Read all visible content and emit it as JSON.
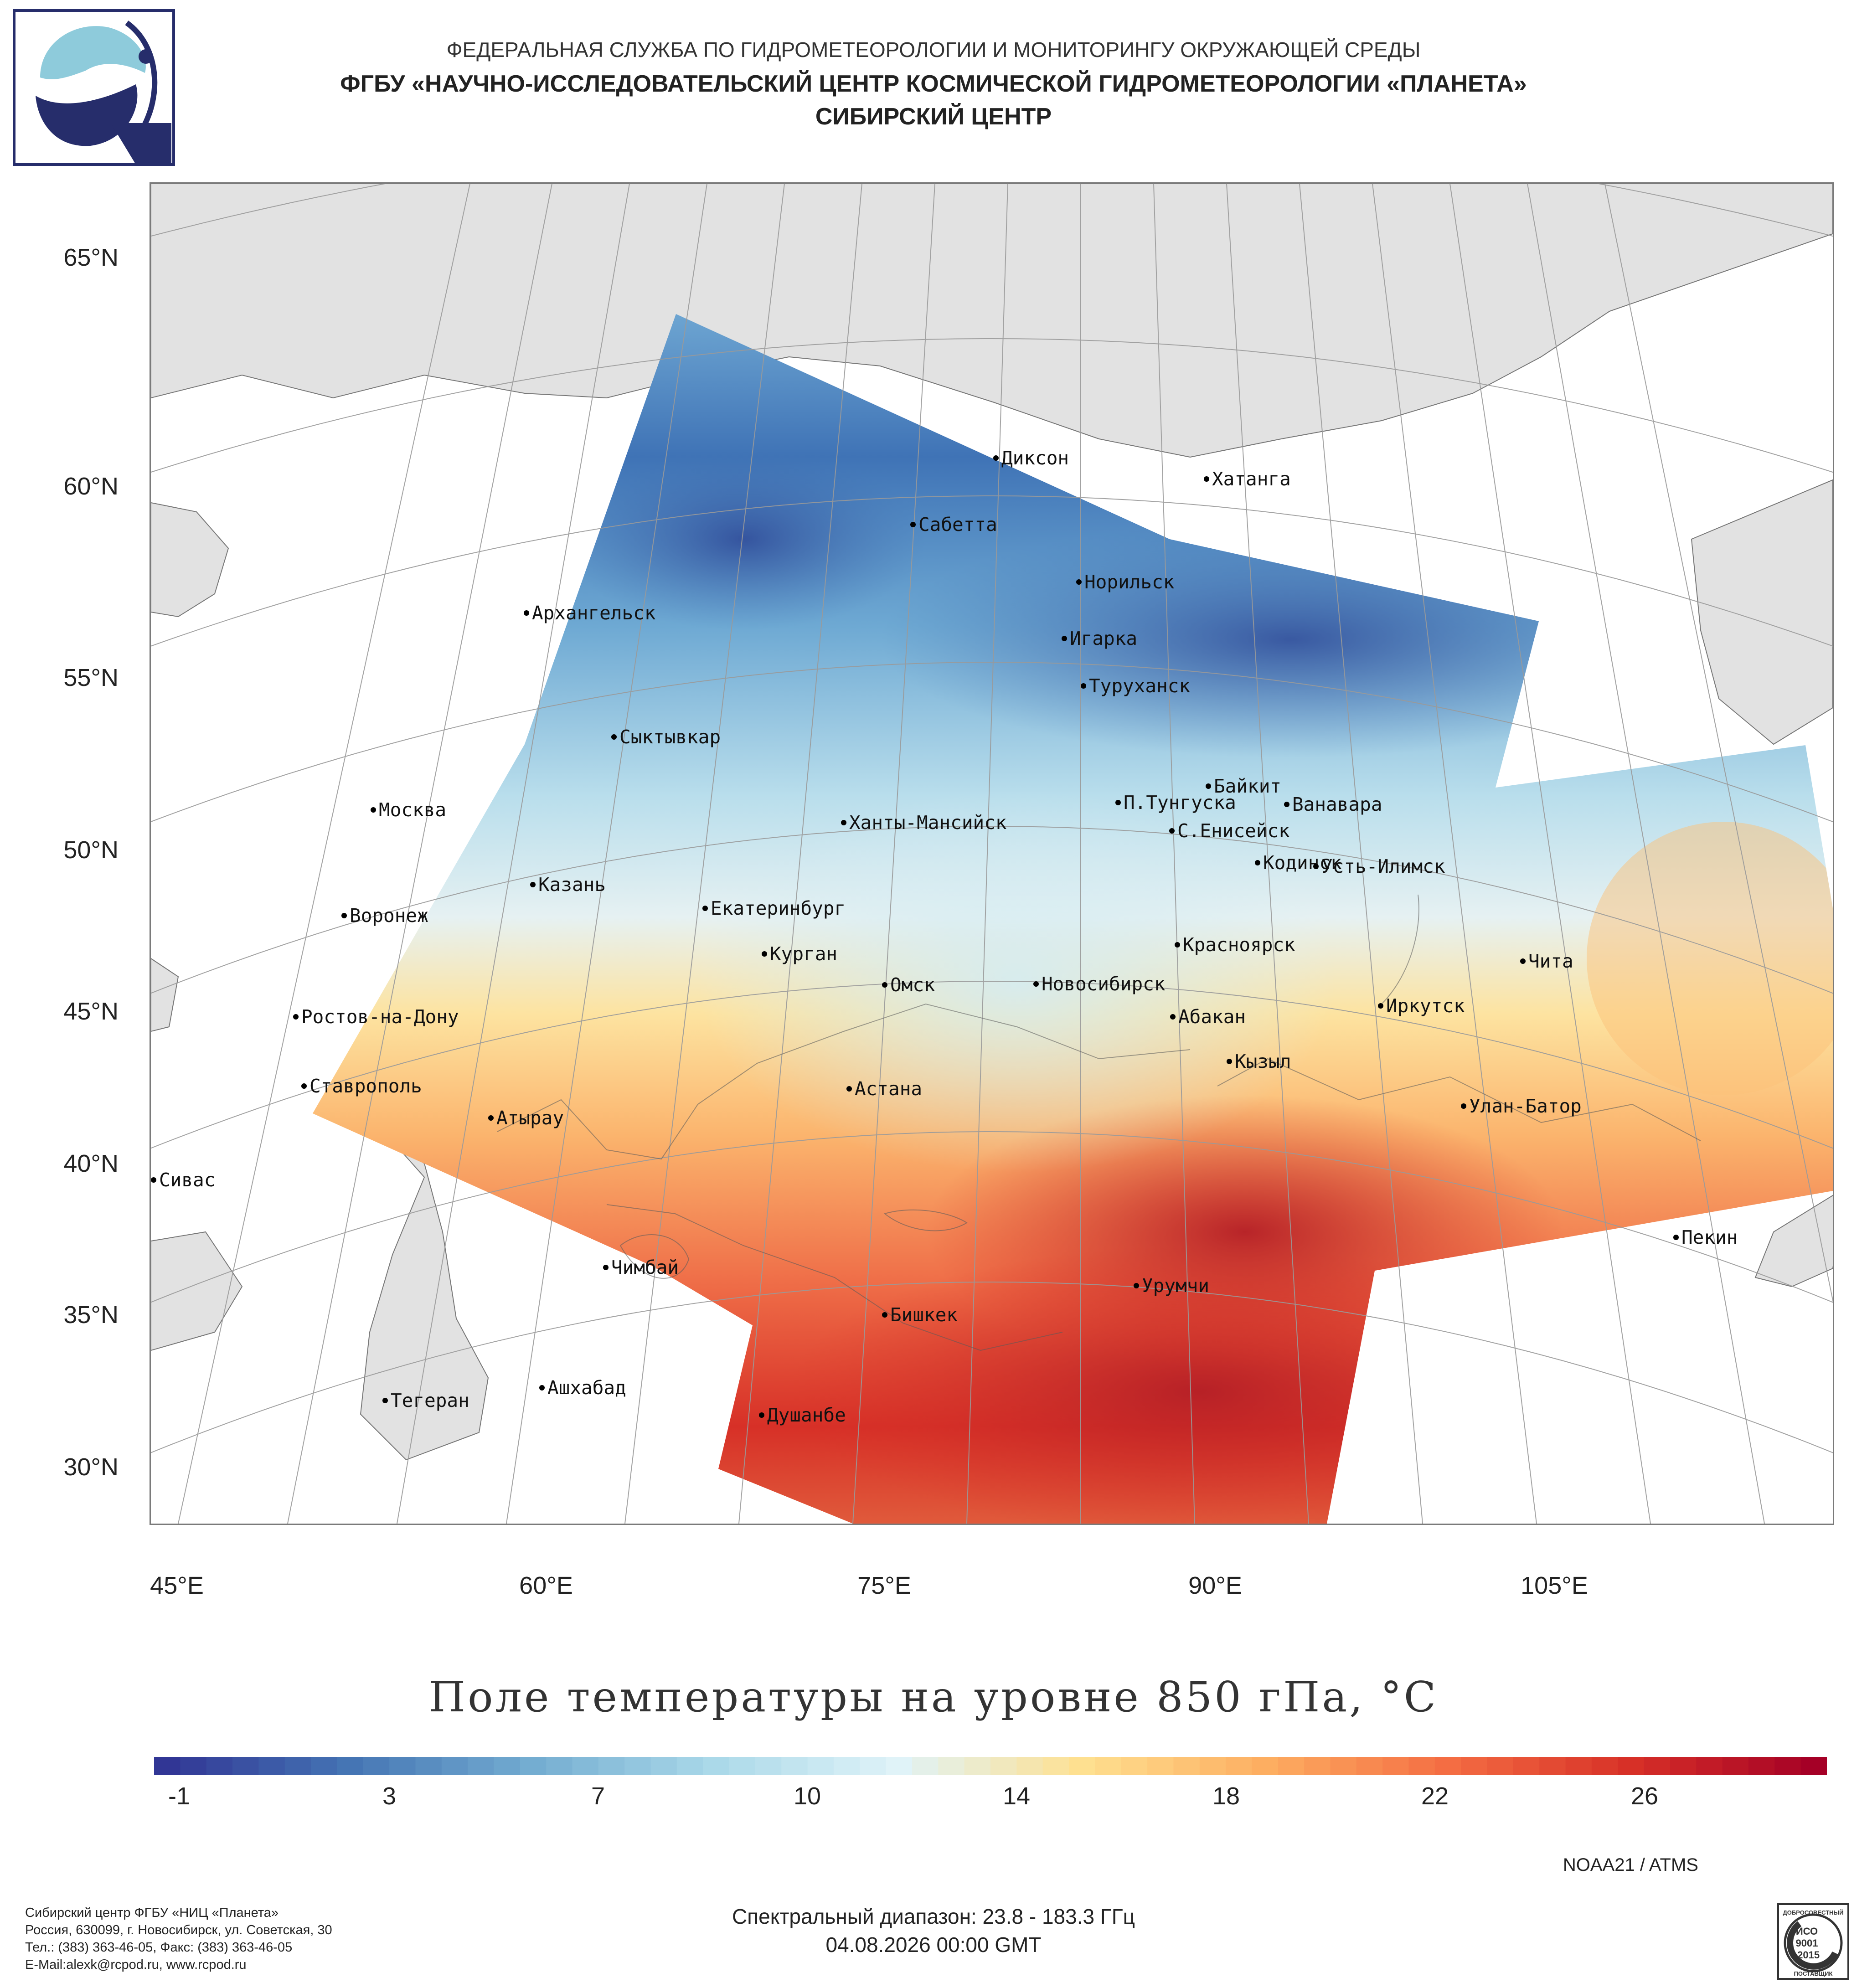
{
  "header": {
    "line1": "ФЕДЕРАЛЬНАЯ СЛУЖБА ПО ГИДРОМЕТЕОРОЛОГИИ И МОНИТОРИНГУ ОКРУЖАЮЩЕЙ СРЕДЫ",
    "line2": "ФГБУ «НАУЧНО-ИССЛЕДОВАТЕЛЬСКИЙ ЦЕНТР КОСМИЧЕСКОЙ ГИДРОМЕТЕОРОЛОГИИ «ПЛАНЕТА»",
    "line3": "СИБИРСКИЙ ЦЕНТР"
  },
  "logo": {
    "icon": "planeta-logo-icon",
    "colors": {
      "dark": "#262d6b",
      "light": "#8ecbdb"
    }
  },
  "map": {
    "lat_labels": [
      "65°N",
      "60°N",
      "55°N",
      "50°N",
      "45°N",
      "40°N",
      "35°N",
      "30°N"
    ],
    "lon_labels": [
      "45°E",
      "60°E",
      "75°E",
      "90°E",
      "105°E"
    ],
    "land_color": "#e2e2e2",
    "cities": [
      "Диксон",
      "Хатанга",
      "Сабетта",
      "Норильск",
      "Архангельск",
      "Игарка",
      "Туруханск",
      "Сыктывкар",
      "Байкит",
      "Москва",
      "П.Тунгуска",
      "Ванавара",
      "Ханты-Мансийск",
      "С.Енисейск",
      "Кодинск",
      "Усть-Илимск",
      "Казань",
      "Екатеринбург",
      "Воронеж",
      "Красноярск",
      "Курган",
      "Чита",
      "Омск",
      "Новосибирск",
      "Иркутск",
      "Ростов-на-Дону",
      "Абакан",
      "Кызыл",
      "Ставрополь",
      "Астана",
      "Улан-Батор",
      "Атырау",
      "Сивас",
      "Пекин",
      "Чимбай",
      "Урумчи",
      "Бишкек",
      "Ашхабад",
      "Тегеран",
      "Душанбе"
    ]
  },
  "colorbar": {
    "title": "Поле температуры на уровне 850 гПа, °C",
    "ticks": [
      "-1",
      "3",
      "7",
      "10",
      "14",
      "18",
      "22",
      "26"
    ],
    "colors": [
      "#313695",
      "#4575b4",
      "#74add1",
      "#abd9e9",
      "#e0f3f8",
      "#fee090",
      "#fdae61",
      "#f46d43",
      "#d73027",
      "#a50026"
    ]
  },
  "footer": {
    "sensor": "NOAA21 / ATMS",
    "address_lines": [
      "Сибирский центр ФГБУ «НИЦ «Планета»",
      "Россия, 630099, г. Новосибирск, ул. Советская, 30",
      "Тел.: (383) 363-46-05, Факс: (383) 363-46-05",
      "E-Mail:alexk@rcpod.ru, www.rcpod.ru"
    ],
    "spectral": "Спектральный диапазон: 23.8 - 183.3 ГГц",
    "datetime": "04.08.2026 00:00 GMT",
    "iso_badge": {
      "top": "ДОБРОСОВЕСТНЫЙ",
      "line1": "ИСО",
      "line2": "9001",
      "line3": "-2015",
      "bottom": "ПОСТАВЩИК"
    }
  }
}
